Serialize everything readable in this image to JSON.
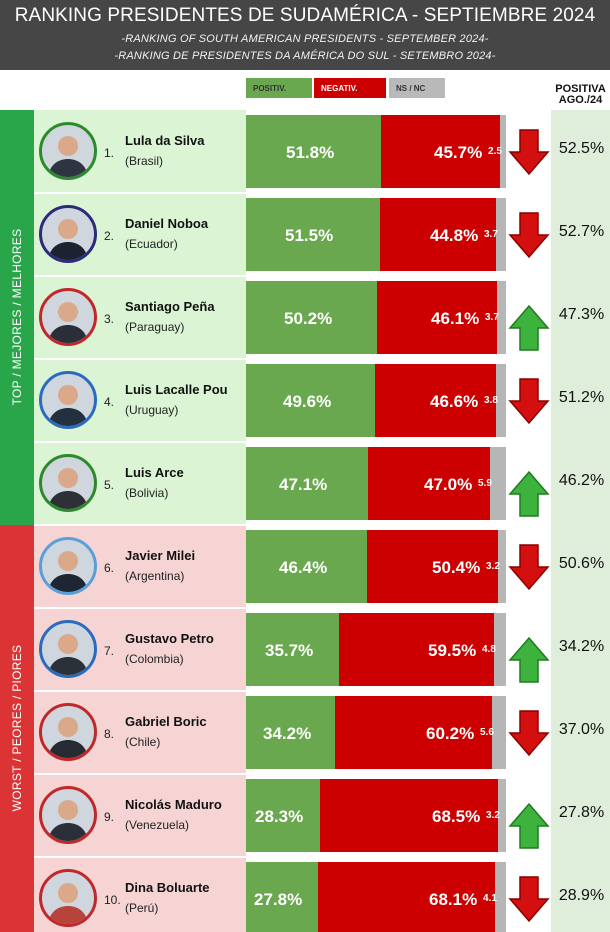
{
  "header": {
    "title": "RANKING PRESIDENTES DE SUDAMÉRICA - SEPTIEMBRE 2024",
    "subtitle_en": "-RANKING OF SOUTH AMERICAN PRESIDENTS - SEPTEMBER 2024-",
    "subtitle_pt": "-RANKING DE PRESIDENTES DA AMÉRICA DO SUL - SETEMBRO 2024-"
  },
  "legend": {
    "positive": "POSITIV.",
    "negative": "NEGATIV.",
    "ns": "NS / NC"
  },
  "last_column_header": {
    "line1": "POSITIVA",
    "line2": "AGO./24"
  },
  "groups": {
    "top": "TOP / MEJORES / MELHORES",
    "worst": "WORST / PEORES / PIORES"
  },
  "colors": {
    "positive": "#6aa84f",
    "negative": "#cc0000",
    "ns": "#b6b6b6",
    "top_band": "#2aa64a",
    "worst_band": "#dc3434",
    "arrow_up": "#3db33d",
    "arrow_down": "#d40f0f"
  },
  "chart_data": {
    "type": "bar",
    "stacked": true,
    "orientation": "horizontal",
    "title": "RANKING PRESIDENTES DE SUDAMÉRICA - SEPTIEMBRE 2024",
    "categories": [
      "Lula da Silva",
      "Daniel Noboa",
      "Santiago Peña",
      "Luis Lacalle Pou",
      "Luis Arce",
      "Javier Milei",
      "Gustavo Petro",
      "Gabriel Boric",
      "Nicolás Maduro",
      "Dina Boluarte"
    ],
    "series": [
      {
        "name": "POSITIV.",
        "values": [
          51.8,
          51.5,
          50.2,
          49.6,
          47.1,
          46.4,
          35.7,
          34.2,
          28.3,
          27.8
        ]
      },
      {
        "name": "NEGATIV.",
        "values": [
          45.7,
          44.8,
          46.1,
          46.6,
          47.0,
          50.4,
          59.5,
          60.2,
          68.5,
          68.1
        ]
      },
      {
        "name": "NS / NC",
        "values": [
          2.5,
          3.7,
          3.7,
          3.8,
          5.9,
          3.2,
          4.8,
          5.6,
          3.2,
          4.1
        ]
      }
    ],
    "rows": [
      {
        "rank": "1.",
        "name": "Lula da Silva",
        "country": "(Brasil)",
        "positive": 51.8,
        "negative": 45.7,
        "ns": 2.5,
        "positive_label": "51.8%",
        "negative_label": "45.7%",
        "ns_label": "2.5",
        "trend": "down",
        "prev": "52.5%",
        "prev_value": 52.5
      },
      {
        "rank": "2.",
        "name": "Daniel Noboa",
        "country": "(Ecuador)",
        "positive": 51.5,
        "negative": 44.8,
        "ns": 3.7,
        "positive_label": "51.5%",
        "negative_label": "44.8%",
        "ns_label": "3.7",
        "trend": "down",
        "prev": "52.7%",
        "prev_value": 52.7
      },
      {
        "rank": "3.",
        "name": "Santiago Peña",
        "country": "(Paraguay)",
        "positive": 50.2,
        "negative": 46.1,
        "ns": 3.7,
        "positive_label": "50.2%",
        "negative_label": "46.1%",
        "ns_label": "3.7",
        "trend": "up",
        "prev": "47.3%",
        "prev_value": 47.3
      },
      {
        "rank": "4.",
        "name": "Luis Lacalle Pou",
        "country": "(Uruguay)",
        "positive": 49.6,
        "negative": 46.6,
        "ns": 3.8,
        "positive_label": "49.6%",
        "negative_label": "46.6%",
        "ns_label": "3.8",
        "trend": "down",
        "prev": "51.2%",
        "prev_value": 51.2
      },
      {
        "rank": "5.",
        "name": "Luis Arce",
        "country": "(Bolivia)",
        "positive": 47.1,
        "negative": 47.0,
        "ns": 5.9,
        "positive_label": "47.1%",
        "negative_label": "47.0%",
        "ns_label": "5.9",
        "trend": "up",
        "prev": "46.2%",
        "prev_value": 46.2
      },
      {
        "rank": "6.",
        "name": "Javier Milei",
        "country": "(Argentina)",
        "positive": 46.4,
        "negative": 50.4,
        "ns": 3.2,
        "positive_label": "46.4%",
        "negative_label": "50.4%",
        "ns_label": "3.2",
        "trend": "down",
        "prev": "50.6%",
        "prev_value": 50.6
      },
      {
        "rank": "7.",
        "name": "Gustavo Petro",
        "country": "(Colombia)",
        "positive": 35.7,
        "negative": 59.5,
        "ns": 4.8,
        "positive_label": "35.7%",
        "negative_label": "59.5%",
        "ns_label": "4.8",
        "trend": "up",
        "prev": "34.2%",
        "prev_value": 34.2
      },
      {
        "rank": "8.",
        "name": "Gabriel Boric",
        "country": "(Chile)",
        "positive": 34.2,
        "negative": 60.2,
        "ns": 5.6,
        "positive_label": "34.2%",
        "negative_label": "60.2%",
        "ns_label": "5.6",
        "trend": "down",
        "prev": "37.0%",
        "prev_value": 37.0
      },
      {
        "rank": "9.",
        "name": "Nicolás Maduro",
        "country": "(Venezuela)",
        "positive": 28.3,
        "negative": 68.5,
        "ns": 3.2,
        "positive_label": "28.3%",
        "negative_label": "68.5%",
        "ns_label": "3.2",
        "trend": "up",
        "prev": "27.8%",
        "prev_value": 27.8
      },
      {
        "rank": "10.",
        "name": "Dina Boluarte",
        "country": "(Perú)",
        "positive": 27.8,
        "negative": 68.1,
        "ns": 4.1,
        "positive_label": "27.8%",
        "negative_label": "68.1%",
        "ns_label": "4.1",
        "trend": "down",
        "prev": "28.9%",
        "prev_value": 28.9
      }
    ]
  }
}
